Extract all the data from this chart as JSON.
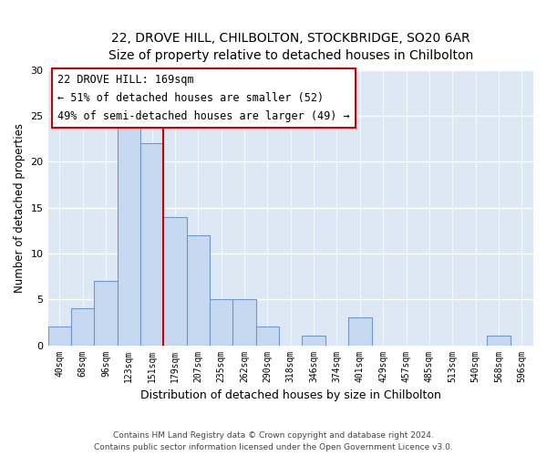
{
  "title": "22, DROVE HILL, CHILBOLTON, STOCKBRIDGE, SO20 6AR",
  "subtitle": "Size of property relative to detached houses in Chilbolton",
  "xlabel": "Distribution of detached houses by size in Chilbolton",
  "ylabel": "Number of detached properties",
  "bin_labels": [
    "40sqm",
    "68sqm",
    "96sqm",
    "123sqm",
    "151sqm",
    "179sqm",
    "207sqm",
    "235sqm",
    "262sqm",
    "290sqm",
    "318sqm",
    "346sqm",
    "374sqm",
    "401sqm",
    "429sqm",
    "457sqm",
    "485sqm",
    "513sqm",
    "540sqm",
    "568sqm",
    "596sqm"
  ],
  "bar_values": [
    2,
    4,
    7,
    24,
    22,
    14,
    12,
    5,
    5,
    2,
    0,
    1,
    0,
    3,
    0,
    0,
    0,
    0,
    0,
    1,
    0
  ],
  "bar_color": "#c6d9f0",
  "bar_edge_color": "#7097c8",
  "vline_x_index": 4.5,
  "vline_color": "#cc0000",
  "ylim": [
    0,
    30
  ],
  "yticks": [
    0,
    5,
    10,
    15,
    20,
    25,
    30
  ],
  "annotation_title": "22 DROVE HILL: 169sqm",
  "annotation_line1": "← 51% of detached houses are smaller (52)",
  "annotation_line2": "49% of semi-detached houses are larger (49) →",
  "annotation_box_color": "#ffffff",
  "annotation_box_edge_color": "#cc0000",
  "footer_line1": "Contains HM Land Registry data © Crown copyright and database right 2024.",
  "footer_line2": "Contains public sector information licensed under the Open Government Licence v3.0.",
  "background_color": "#ffffff",
  "plot_bg_color": "#dde8f5"
}
